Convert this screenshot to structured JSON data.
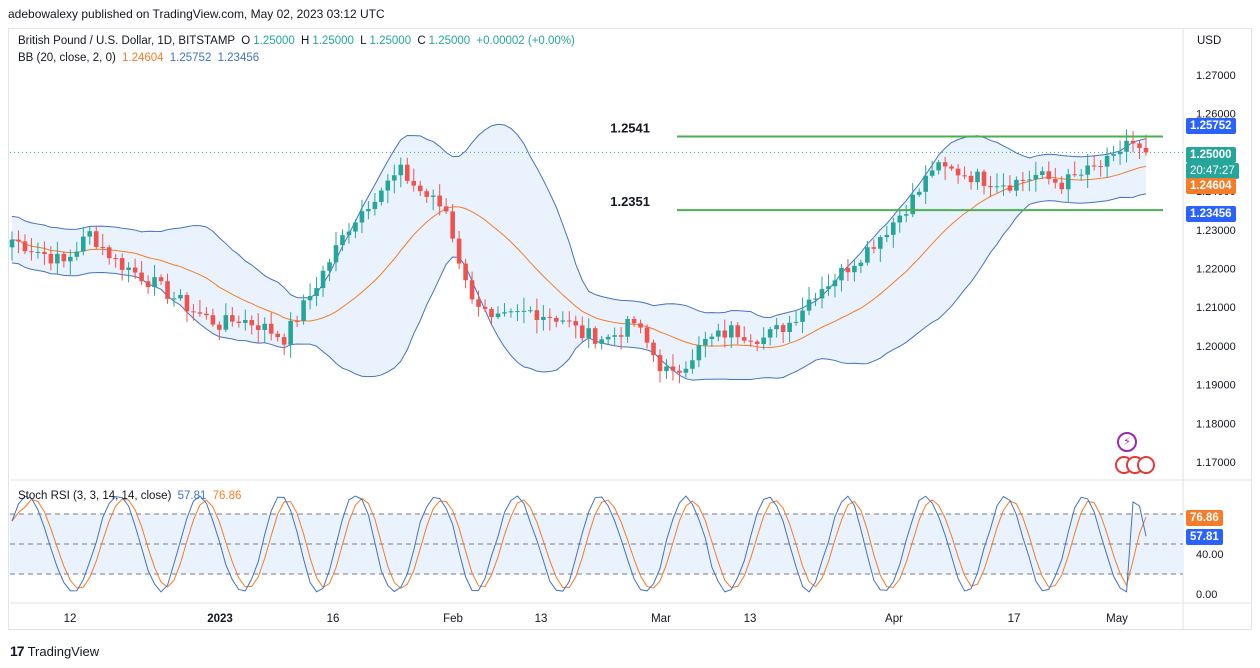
{
  "publisher": "adebowalexy published on TradingView.com, May 02, 2023 03:12 UTC",
  "footer_brand": "TradingView",
  "colors": {
    "up": "#26a69a",
    "down": "#ef5350",
    "bb_basis": "#f57c28",
    "bb_bands": "#4472c4",
    "bb_fill": "#eaf3fd",
    "level": "#4caf50",
    "stoch_k": "#4472c4",
    "stoch_d": "#f57c28"
  },
  "chart_data": [
    {
      "type": "candlestick",
      "legend": {
        "symbol": "British Pound / U.S. Dollar, 1D, BITSTAMP",
        "o_label": "O",
        "o": "1.25000",
        "h_label": "H",
        "h": "1.25000",
        "l_label": "L",
        "l": "1.25000",
        "c_label": "C",
        "c": "1.25000",
        "change": "+0.00002 (+0.00%)"
      },
      "indicator": {
        "name": "BB (20, close, 2, 0)",
        "basis": "1.24604",
        "upper": "1.25752",
        "lower": "1.23456"
      },
      "currency": "USD",
      "y_ticks": [
        "1.27000",
        "1.26000",
        "1.25000",
        "1.24000",
        "1.23000",
        "1.22000",
        "1.21000",
        "1.20000",
        "1.19000",
        "1.18000",
        "1.17000"
      ],
      "ylim": [
        1.1655,
        1.2755
      ],
      "price_tags": {
        "upper": "1.25752",
        "last": "1.25000",
        "countdown": "20:47:27",
        "basis": "1.24604",
        "lower": "1.23456"
      },
      "levels": [
        {
          "label": "1.2541",
          "value": 1.2541
        },
        {
          "label": "1.2351",
          "value": 1.2351
        }
      ],
      "x_ticks": [
        "12",
        "2023",
        "16",
        "Feb",
        "13",
        "Mar",
        "13",
        "Apr",
        "17",
        "May"
      ],
      "anchors": [
        [
          0,
          1.2275
        ],
        [
          8,
          1.2215
        ],
        [
          12,
          1.229
        ],
        [
          16,
          1.222
        ],
        [
          22,
          1.216
        ],
        [
          28,
          1.209
        ],
        [
          32,
          1.2055
        ],
        [
          35,
          1.207
        ],
        [
          38,
          1.2055
        ],
        [
          42,
          1.202
        ],
        [
          46,
          1.213
        ],
        [
          52,
          1.231
        ],
        [
          56,
          1.239
        ],
        [
          60,
          1.245
        ],
        [
          63,
          1.24
        ],
        [
          67,
          1.235
        ],
        [
          70,
          1.216
        ],
        [
          74,
          1.206
        ],
        [
          80,
          1.209
        ],
        [
          85,
          1.207
        ],
        [
          88,
          1.203
        ],
        [
          92,
          1.202
        ],
        [
          96,
          1.206
        ],
        [
          100,
          1.195
        ],
        [
          102,
          1.192
        ],
        [
          104,
          1.196
        ],
        [
          107,
          1.201
        ],
        [
          111,
          1.204
        ],
        [
          116,
          1.202
        ],
        [
          120,
          1.206
        ],
        [
          124,
          1.214
        ],
        [
          128,
          1.219
        ],
        [
          132,
          1.225
        ],
        [
          136,
          1.232
        ],
        [
          140,
          1.24
        ],
        [
          142,
          1.246
        ],
        [
          146,
          1.245
        ],
        [
          150,
          1.243
        ],
        [
          154,
          1.242
        ],
        [
          158,
          1.244
        ],
        [
          162,
          1.242
        ],
        [
          166,
          1.245
        ],
        [
          170,
          1.248
        ],
        [
          172,
          1.253
        ],
        [
          174,
          1.25
        ]
      ]
    },
    {
      "type": "line",
      "legend": {
        "name": "Stoch RSI (3, 3, 14, 14, close)",
        "k": "57.81",
        "d": "76.86"
      },
      "y_ticks": [
        "40.00",
        "0.00"
      ],
      "bands": [
        80,
        50,
        20
      ],
      "ylim": [
        -5,
        105
      ],
      "tags": {
        "d": "76.86",
        "k": "57.81"
      }
    }
  ]
}
